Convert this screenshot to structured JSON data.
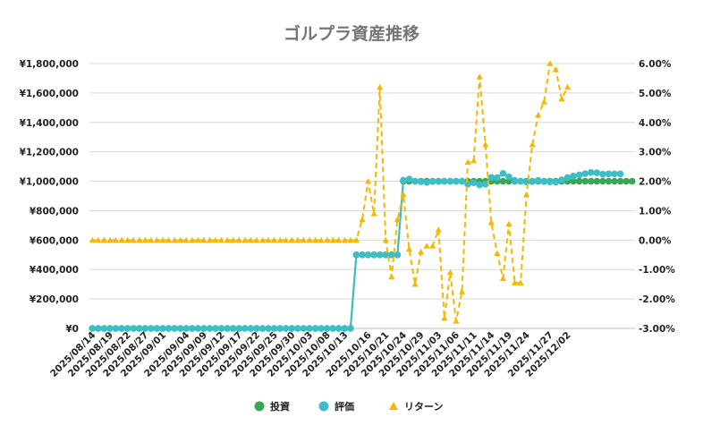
{
  "chart_data": {
    "type": "line",
    "title": "ゴルプラ資産推移",
    "xlabel": "",
    "ylabel": "",
    "y_left_ticks": [
      "¥0",
      "¥200,000",
      "¥400,000",
      "¥600,000",
      "¥800,000",
      "¥1,000,000",
      "¥1,200,000",
      "¥1,400,000",
      "¥1,600,000",
      "¥1,800,000"
    ],
    "y_left_lim": [
      0,
      1800000
    ],
    "y_right_ticks": [
      "-3.00%",
      "-2.00%",
      "-1.00%",
      "0.00%",
      "1.00%",
      "2.00%",
      "3.00%",
      "4.00%",
      "5.00%",
      "6.00%"
    ],
    "y_right_lim": [
      -3.0,
      6.0
    ],
    "x_tick_labels": [
      "2025/08/14",
      "2025/08/19",
      "2025/08/22",
      "2025/08/27",
      "2025/09/01",
      "2025/09/04",
      "2025/09/09",
      "2025/09/12",
      "2025/09/17",
      "2025/09/22",
      "2025/09/25",
      "2025/09/30",
      "2025/10/03",
      "2025/10/08",
      "2025/10/13",
      "2025/10/16",
      "2025/10/21",
      "2025/10/24",
      "2025/10/29",
      "2025/11/03",
      "2025/11/06",
      "2025/11/11",
      "2025/11/14",
      "2025/11/19",
      "2025/11/24",
      "2025/11/27",
      "2025/12/02"
    ],
    "legend_position": "bottom",
    "grid": true,
    "series": [
      {
        "name": "投資",
        "axis": "left",
        "color": "#3aa655",
        "marker": "circle",
        "style": "solid",
        "values": [
          0,
          0,
          0,
          0,
          0,
          0,
          0,
          0,
          0,
          0,
          0,
          0,
          0,
          0,
          0,
          0,
          0,
          0,
          0,
          0,
          0,
          0,
          0,
          0,
          0,
          0,
          0,
          0,
          0,
          0,
          0,
          0,
          0,
          0,
          0,
          0,
          0,
          0,
          0,
          0,
          0,
          0,
          0,
          0,
          0,
          500000,
          500000,
          500000,
          500000,
          500000,
          500000,
          500000,
          500000,
          1000000,
          1000000,
          1000000,
          1000000,
          1000000,
          1000000,
          1000000,
          1000000,
          1000000,
          1000000,
          1000000,
          1000000,
          1000000,
          1000000,
          1000000,
          1000000,
          1000000,
          1000000,
          1000000,
          1000000,
          1000000,
          1000000,
          1000000,
          1000000,
          1000000,
          1000000,
          1000000,
          1000000,
          1000000,
          1000000,
          1000000,
          1000000,
          1000000,
          1000000,
          1000000,
          1000000,
          1000000,
          1000000,
          1000000,
          1000000
        ]
      },
      {
        "name": "評価",
        "axis": "left",
        "color": "#3dbec6",
        "marker": "circle",
        "style": "solid",
        "values": [
          0,
          0,
          0,
          0,
          0,
          0,
          0,
          0,
          0,
          0,
          0,
          0,
          0,
          0,
          0,
          0,
          0,
          0,
          0,
          0,
          0,
          0,
          0,
          0,
          0,
          0,
          0,
          0,
          0,
          0,
          0,
          0,
          0,
          0,
          0,
          0,
          0,
          0,
          0,
          0,
          0,
          0,
          0,
          0,
          0,
          500000,
          500000,
          500000,
          500000,
          500000,
          500000,
          500000,
          500000,
          1007000,
          1015000,
          1000000,
          997000,
          992000,
          998000,
          999000,
          1000000,
          1000000,
          1000000,
          1000000,
          980000,
          990000,
          975000,
          980000,
          1026000,
          1025000,
          1053000,
          1030000,
          1005000,
          1000000,
          995000,
          998000,
          1006000,
          998000,
          996000,
          994000,
          1010000,
          1025000,
          1035000,
          1043000,
          1052000,
          1060000,
          1058000,
          1048000,
          1050000,
          1050000,
          1050000
        ]
      },
      {
        "name": "リターン",
        "axis": "right",
        "color": "#f5b800",
        "marker": "triangle",
        "style": "dashed",
        "values": [
          0,
          0,
          0,
          0,
          0,
          0,
          0,
          0,
          0,
          0,
          0,
          0,
          0,
          0,
          0,
          0,
          0,
          0,
          0,
          0,
          0,
          0,
          0,
          0,
          0,
          0,
          0,
          0,
          0,
          0,
          0,
          0,
          0,
          0,
          0,
          0,
          0,
          0,
          0,
          0,
          0,
          0,
          0,
          0,
          0,
          0,
          0.7,
          2.0,
          0.9,
          5.2,
          0,
          -1.25,
          0.7,
          1.55,
          -0.3,
          -1.5,
          -0.4,
          -0.2,
          -0.2,
          0.35,
          -2.65,
          -1.1,
          -2.75,
          -1.75,
          2.65,
          2.7,
          5.55,
          3.25,
          0.6,
          -0.45,
          -1.3,
          0.55,
          -1.45,
          -1.45,
          1.55,
          3.25,
          4.25,
          4.7,
          6.0,
          5.8,
          4.8,
          5.2
        ]
      }
    ]
  }
}
